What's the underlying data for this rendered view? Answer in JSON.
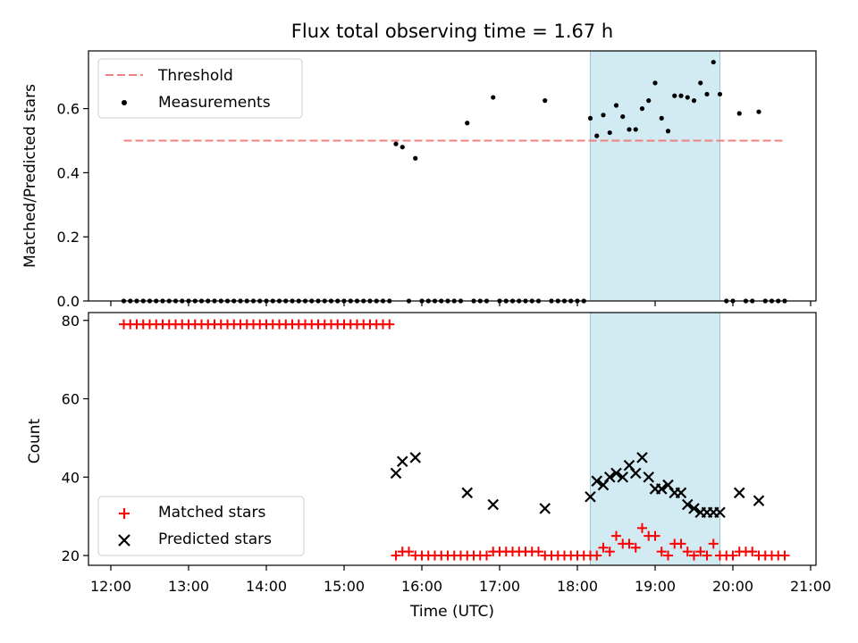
{
  "chart_data": {
    "type": "scatter",
    "title": "Flux total observing time = 1.67 h",
    "xlabel": "Time (UTC)",
    "x_ticks": [
      "12:00",
      "13:00",
      "14:00",
      "15:00",
      "16:00",
      "17:00",
      "18:00",
      "19:00",
      "20:00",
      "21:00"
    ],
    "shaded_interval": {
      "start": "18:10",
      "end": "19:50",
      "color": "#add8e6"
    },
    "top": {
      "ylabel": "Matched/Predicted stars",
      "ylim": [
        0,
        0.78
      ],
      "y_ticks": [
        "0.0",
        "0.2",
        "0.4",
        "0.6"
      ],
      "legend": {
        "position": "top-left",
        "entries": [
          "Threshold",
          "Measurements"
        ]
      },
      "threshold": {
        "name": "Threshold",
        "value": 0.5,
        "x_range": [
          "12:10",
          "20:40"
        ],
        "color": "#f08080"
      },
      "series": [
        {
          "name": "Measurements",
          "color": "#000000",
          "points": [
            [
              "12:10",
              0
            ],
            [
              "12:15",
              0
            ],
            [
              "12:20",
              0
            ],
            [
              "12:25",
              0
            ],
            [
              "12:30",
              0
            ],
            [
              "12:35",
              0
            ],
            [
              "12:40",
              0
            ],
            [
              "12:45",
              0
            ],
            [
              "12:50",
              0
            ],
            [
              "12:55",
              0
            ],
            [
              "13:00",
              0
            ],
            [
              "13:05",
              0
            ],
            [
              "13:10",
              0
            ],
            [
              "13:15",
              0
            ],
            [
              "13:20",
              0
            ],
            [
              "13:25",
              0
            ],
            [
              "13:30",
              0
            ],
            [
              "13:35",
              0
            ],
            [
              "13:40",
              0
            ],
            [
              "13:45",
              0
            ],
            [
              "13:50",
              0
            ],
            [
              "13:55",
              0
            ],
            [
              "14:00",
              0
            ],
            [
              "14:05",
              0
            ],
            [
              "14:10",
              0
            ],
            [
              "14:15",
              0
            ],
            [
              "14:20",
              0
            ],
            [
              "14:25",
              0
            ],
            [
              "14:30",
              0
            ],
            [
              "14:35",
              0
            ],
            [
              "14:40",
              0
            ],
            [
              "14:45",
              0
            ],
            [
              "14:50",
              0
            ],
            [
              "14:55",
              0
            ],
            [
              "15:00",
              0
            ],
            [
              "15:05",
              0
            ],
            [
              "15:10",
              0
            ],
            [
              "15:15",
              0
            ],
            [
              "15:20",
              0
            ],
            [
              "15:25",
              0
            ],
            [
              "15:30",
              0
            ],
            [
              "15:35",
              0
            ],
            [
              "15:40",
              0.49
            ],
            [
              "15:45",
              0.48
            ],
            [
              "15:50",
              0
            ],
            [
              "15:55",
              0.445
            ],
            [
              "16:00",
              0
            ],
            [
              "16:05",
              0
            ],
            [
              "16:10",
              0
            ],
            [
              "16:15",
              0
            ],
            [
              "16:20",
              0
            ],
            [
              "16:25",
              0
            ],
            [
              "16:30",
              0
            ],
            [
              "16:35",
              0.555
            ],
            [
              "16:40",
              0
            ],
            [
              "16:45",
              0
            ],
            [
              "16:50",
              0
            ],
            [
              "16:55",
              0.635
            ],
            [
              "17:00",
              0
            ],
            [
              "17:05",
              0
            ],
            [
              "17:10",
              0
            ],
            [
              "17:15",
              0
            ],
            [
              "17:20",
              0
            ],
            [
              "17:25",
              0
            ],
            [
              "17:30",
              0
            ],
            [
              "17:35",
              0.625
            ],
            [
              "17:40",
              0
            ],
            [
              "17:45",
              0
            ],
            [
              "17:50",
              0
            ],
            [
              "17:55",
              0
            ],
            [
              "18:00",
              0
            ],
            [
              "18:05",
              0
            ],
            [
              "18:10",
              0.57
            ],
            [
              "18:15",
              0.515
            ],
            [
              "18:20",
              0.58
            ],
            [
              "18:25",
              0.525
            ],
            [
              "18:30",
              0.61
            ],
            [
              "18:35",
              0.575
            ],
            [
              "18:40",
              0.535
            ],
            [
              "18:45",
              0.535
            ],
            [
              "18:50",
              0.6
            ],
            [
              "18:55",
              0.625
            ],
            [
              "19:00",
              0.68
            ],
            [
              "19:05",
              0.57
            ],
            [
              "19:10",
              0.53
            ],
            [
              "19:15",
              0.64
            ],
            [
              "19:20",
              0.64
            ],
            [
              "19:25",
              0.635
            ],
            [
              "19:30",
              0.625
            ],
            [
              "19:35",
              0.68
            ],
            [
              "19:40",
              0.645
            ],
            [
              "19:45",
              0.745
            ],
            [
              "19:50",
              0.645
            ],
            [
              "19:55",
              0
            ],
            [
              "20:00",
              0
            ],
            [
              "20:05",
              0.585
            ],
            [
              "20:10",
              0
            ],
            [
              "20:15",
              0
            ],
            [
              "20:20",
              0.59
            ],
            [
              "20:25",
              0
            ],
            [
              "20:30",
              0
            ],
            [
              "20:35",
              0
            ],
            [
              "20:40",
              0
            ]
          ]
        }
      ]
    },
    "bottom": {
      "ylabel": "Count",
      "ylim": [
        17.5,
        82
      ],
      "y_ticks": [
        "20",
        "40",
        "60",
        "80"
      ],
      "legend": {
        "position": "bottom-left",
        "entries": [
          "Matched stars",
          "Predicted stars"
        ]
      },
      "series": [
        {
          "name": "Matched stars",
          "marker": "plus",
          "color": "#ff0000",
          "points": [
            [
              "12:10",
              79
            ],
            [
              "12:15",
              79
            ],
            [
              "12:20",
              79
            ],
            [
              "12:25",
              79
            ],
            [
              "12:30",
              79
            ],
            [
              "12:35",
              79
            ],
            [
              "12:40",
              79
            ],
            [
              "12:45",
              79
            ],
            [
              "12:50",
              79
            ],
            [
              "12:55",
              79
            ],
            [
              "13:00",
              79
            ],
            [
              "13:05",
              79
            ],
            [
              "13:10",
              79
            ],
            [
              "13:15",
              79
            ],
            [
              "13:20",
              79
            ],
            [
              "13:25",
              79
            ],
            [
              "13:30",
              79
            ],
            [
              "13:35",
              79
            ],
            [
              "13:40",
              79
            ],
            [
              "13:45",
              79
            ],
            [
              "13:50",
              79
            ],
            [
              "13:55",
              79
            ],
            [
              "14:00",
              79
            ],
            [
              "14:05",
              79
            ],
            [
              "14:10",
              79
            ],
            [
              "14:15",
              79
            ],
            [
              "14:20",
              79
            ],
            [
              "14:25",
              79
            ],
            [
              "14:30",
              79
            ],
            [
              "14:35",
              79
            ],
            [
              "14:40",
              79
            ],
            [
              "14:45",
              79
            ],
            [
              "14:50",
              79
            ],
            [
              "14:55",
              79
            ],
            [
              "15:00",
              79
            ],
            [
              "15:05",
              79
            ],
            [
              "15:10",
              79
            ],
            [
              "15:15",
              79
            ],
            [
              "15:20",
              79
            ],
            [
              "15:25",
              79
            ],
            [
              "15:30",
              79
            ],
            [
              "15:35",
              79
            ],
            [
              "15:40",
              20
            ],
            [
              "15:45",
              21
            ],
            [
              "15:50",
              21
            ],
            [
              "15:55",
              20
            ],
            [
              "16:00",
              20
            ],
            [
              "16:05",
              20
            ],
            [
              "16:10",
              20
            ],
            [
              "16:15",
              20
            ],
            [
              "16:20",
              20
            ],
            [
              "16:25",
              20
            ],
            [
              "16:30",
              20
            ],
            [
              "16:35",
              20
            ],
            [
              "16:40",
              20
            ],
            [
              "16:45",
              20
            ],
            [
              "16:50",
              20
            ],
            [
              "16:55",
              21
            ],
            [
              "17:00",
              21
            ],
            [
              "17:05",
              21
            ],
            [
              "17:10",
              21
            ],
            [
              "17:15",
              21
            ],
            [
              "17:20",
              21
            ],
            [
              "17:25",
              21
            ],
            [
              "17:30",
              21
            ],
            [
              "17:35",
              20
            ],
            [
              "17:40",
              20
            ],
            [
              "17:45",
              20
            ],
            [
              "17:50",
              20
            ],
            [
              "17:55",
              20
            ],
            [
              "18:00",
              20
            ],
            [
              "18:05",
              20
            ],
            [
              "18:10",
              20
            ],
            [
              "18:15",
              20
            ],
            [
              "18:20",
              22
            ],
            [
              "18:25",
              21
            ],
            [
              "18:30",
              25
            ],
            [
              "18:35",
              23
            ],
            [
              "18:40",
              23
            ],
            [
              "18:45",
              22
            ],
            [
              "18:50",
              27
            ],
            [
              "18:55",
              25
            ],
            [
              "19:00",
              25
            ],
            [
              "19:05",
              21
            ],
            [
              "19:10",
              20
            ],
            [
              "19:15",
              23
            ],
            [
              "19:20",
              23
            ],
            [
              "19:25",
              21
            ],
            [
              "19:30",
              20
            ],
            [
              "19:35",
              21
            ],
            [
              "19:40",
              20
            ],
            [
              "19:45",
              23
            ],
            [
              "19:50",
              20
            ],
            [
              "19:55",
              20
            ],
            [
              "20:00",
              20
            ],
            [
              "20:05",
              21
            ],
            [
              "20:10",
              21
            ],
            [
              "20:15",
              21
            ],
            [
              "20:20",
              20
            ],
            [
              "20:25",
              20
            ],
            [
              "20:30",
              20
            ],
            [
              "20:35",
              20
            ],
            [
              "20:40",
              20
            ]
          ]
        },
        {
          "name": "Predicted stars",
          "marker": "x",
          "color": "#000000",
          "points": [
            [
              "15:40",
              41
            ],
            [
              "15:45",
              44
            ],
            [
              "15:55",
              45
            ],
            [
              "16:35",
              36
            ],
            [
              "16:55",
              33
            ],
            [
              "17:35",
              32
            ],
            [
              "18:10",
              35
            ],
            [
              "18:15",
              39
            ],
            [
              "18:20",
              38
            ],
            [
              "18:25",
              40
            ],
            [
              "18:30",
              41
            ],
            [
              "18:35",
              40
            ],
            [
              "18:40",
              43
            ],
            [
              "18:45",
              41
            ],
            [
              "18:50",
              45
            ],
            [
              "18:55",
              40
            ],
            [
              "19:00",
              37
            ],
            [
              "19:05",
              37
            ],
            [
              "19:10",
              38
            ],
            [
              "19:15",
              36
            ],
            [
              "19:20",
              36
            ],
            [
              "19:25",
              33
            ],
            [
              "19:30",
              32
            ],
            [
              "19:35",
              31
            ],
            [
              "19:40",
              31
            ],
            [
              "19:45",
              31
            ],
            [
              "19:50",
              31
            ],
            [
              "20:05",
              36
            ],
            [
              "20:20",
              34
            ]
          ]
        }
      ]
    }
  }
}
